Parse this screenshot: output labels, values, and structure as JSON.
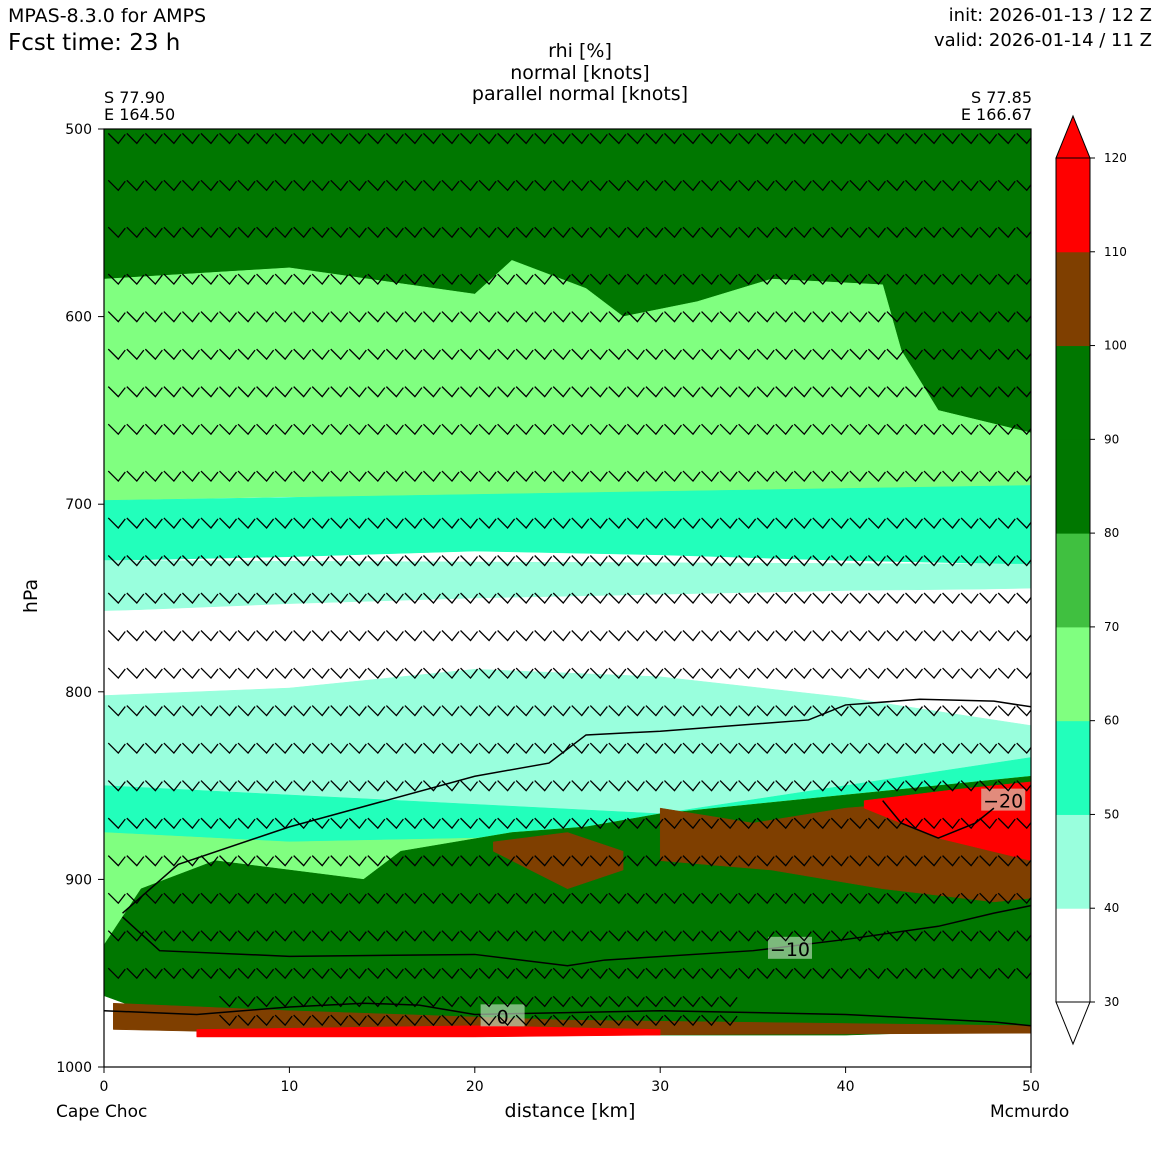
{
  "header": {
    "model": "MPAS-8.3.0 for AMPS",
    "fcst": "Fcst time:   23 h",
    "init": "init: 2026-01-13 / 12 Z",
    "valid": "valid: 2026-01-14 / 11 Z"
  },
  "chart_data": {
    "type": "heatmap",
    "title": [
      "rhi [%]",
      "normal [knots]",
      "parallel normal [knots]"
    ],
    "xlabel": "distance [km]",
    "ylabel": "hPa",
    "xlim": [
      0,
      50
    ],
    "ylim": [
      1000,
      500
    ],
    "x_ticks": [
      0,
      10,
      20,
      30,
      40,
      50
    ],
    "y_ticks": [
      500,
      600,
      700,
      800,
      900,
      1000
    ],
    "start_point": {
      "lat": "S 77.90",
      "lon": "E 164.50",
      "name": "Cape Choc"
    },
    "end_point": {
      "lat": "S 77.85",
      "lon": "E 166.67",
      "name": "Mcmurdo"
    },
    "colorbar": {
      "levels": [
        30,
        40,
        50,
        60,
        70,
        80,
        90,
        100,
        110,
        120
      ],
      "colors": [
        "#ffffff",
        "#99ffdd",
        "#22ffbb",
        "#80ff80",
        "#40c040",
        "#007700",
        "#007700",
        "#7f3f00",
        "#ff0000"
      ],
      "extend": "both"
    },
    "rhi_field": [
      {
        "rhi": 90,
        "color": "#007700",
        "top": [
          [
            0,
            500
          ],
          [
            50,
            500
          ]
        ],
        "bottom": [
          [
            0,
            580
          ],
          [
            10,
            574
          ],
          [
            20,
            588
          ],
          [
            22,
            570
          ],
          [
            26,
            585
          ],
          [
            28,
            600
          ],
          [
            32,
            592
          ],
          [
            36,
            580
          ],
          [
            42,
            583
          ],
          [
            43,
            618
          ],
          [
            45,
            650
          ],
          [
            50,
            662
          ]
        ]
      },
      {
        "rhi": 65,
        "color": "#80ff80",
        "top": [
          [
            0,
            580
          ],
          [
            10,
            574
          ],
          [
            20,
            588
          ],
          [
            22,
            570
          ],
          [
            26,
            585
          ],
          [
            28,
            600
          ],
          [
            32,
            592
          ],
          [
            36,
            580
          ],
          [
            42,
            583
          ],
          [
            43,
            618
          ],
          [
            45,
            650
          ],
          [
            50,
            662
          ]
        ],
        "bottom": [
          [
            0,
            698
          ],
          [
            10,
            696
          ],
          [
            20,
            697
          ],
          [
            30,
            694
          ],
          [
            40,
            692
          ],
          [
            50,
            690
          ]
        ]
      },
      {
        "rhi": 55,
        "color": "#22ffbb",
        "top": [
          [
            0,
            698
          ],
          [
            50,
            690
          ]
        ],
        "bottom": [
          [
            0,
            730
          ],
          [
            10,
            728
          ],
          [
            20,
            725
          ],
          [
            30,
            727
          ],
          [
            40,
            730
          ],
          [
            50,
            732
          ]
        ]
      },
      {
        "rhi": 45,
        "color": "#99ffdd",
        "top": [
          [
            0,
            730
          ],
          [
            50,
            732
          ]
        ],
        "bottom": [
          [
            0,
            757
          ],
          [
            10,
            753
          ],
          [
            20,
            750
          ],
          [
            30,
            748
          ],
          [
            40,
            746
          ],
          [
            50,
            745
          ]
        ]
      },
      {
        "rhi": 35,
        "color": "#ffffff",
        "top": [
          [
            0,
            757
          ],
          [
            50,
            745
          ]
        ],
        "bottom": [
          [
            0,
            802
          ],
          [
            10,
            798
          ],
          [
            20,
            788
          ],
          [
            30,
            792
          ],
          [
            40,
            803
          ],
          [
            50,
            818
          ]
        ]
      },
      {
        "rhi": 45,
        "color": "#99ffdd",
        "top": [
          [
            0,
            802
          ],
          [
            10,
            798
          ],
          [
            20,
            788
          ],
          [
            30,
            792
          ],
          [
            40,
            803
          ],
          [
            50,
            818
          ]
        ],
        "bottom": [
          [
            0,
            850
          ],
          [
            10,
            855
          ],
          [
            20,
            860
          ],
          [
            30,
            865
          ],
          [
            40,
            850
          ],
          [
            50,
            835
          ]
        ]
      },
      {
        "rhi": 55,
        "color": "#22ffbb",
        "top": [
          [
            0,
            850
          ],
          [
            10,
            855
          ],
          [
            20,
            860
          ],
          [
            30,
            865
          ],
          [
            40,
            850
          ],
          [
            50,
            835
          ]
        ],
        "bottom": [
          [
            0,
            875
          ],
          [
            10,
            880
          ],
          [
            20,
            878
          ],
          [
            26,
            875
          ],
          [
            30,
            865
          ],
          [
            40,
            855
          ],
          [
            50,
            845
          ]
        ]
      },
      {
        "rhi": 65,
        "color": "#80ff80",
        "top": [
          [
            0,
            875
          ],
          [
            10,
            880
          ],
          [
            20,
            878
          ],
          [
            26,
            875
          ],
          [
            30,
            865
          ],
          [
            40,
            855
          ],
          [
            50,
            845
          ]
        ],
        "bottom": [
          [
            0,
            935
          ],
          [
            2,
            905
          ],
          [
            6,
            890
          ],
          [
            14,
            900
          ],
          [
            16,
            885
          ],
          [
            22,
            875
          ],
          [
            26,
            872
          ],
          [
            30,
            865
          ],
          [
            40,
            855
          ],
          [
            50,
            845
          ]
        ]
      },
      {
        "rhi": 90,
        "color": "#007700",
        "top": [
          [
            0,
            935
          ],
          [
            2,
            905
          ],
          [
            6,
            890
          ],
          [
            14,
            900
          ],
          [
            16,
            885
          ],
          [
            22,
            875
          ],
          [
            26,
            872
          ],
          [
            30,
            865
          ],
          [
            40,
            855
          ],
          [
            50,
            845
          ]
        ],
        "bottom": [
          [
            0,
            962
          ],
          [
            5,
            980
          ],
          [
            20,
            983
          ],
          [
            40,
            983
          ],
          [
            50,
            980
          ]
        ]
      },
      {
        "rhi": 105,
        "color": "#7f3f00",
        "top": [
          [
            30,
            862
          ],
          [
            35,
            870
          ],
          [
            40,
            862
          ],
          [
            45,
            858
          ],
          [
            50,
            855
          ]
        ],
        "bottom": [
          [
            30,
            890
          ],
          [
            36,
            895
          ],
          [
            42,
            905
          ],
          [
            48,
            912
          ],
          [
            50,
            910
          ]
        ]
      },
      {
        "rhi": 105,
        "color": "#7f3f00",
        "top": [
          [
            21,
            880
          ],
          [
            25,
            875
          ],
          [
            28,
            885
          ]
        ],
        "bottom": [
          [
            21,
            885
          ],
          [
            25,
            905
          ],
          [
            28,
            895
          ]
        ]
      },
      {
        "rhi": 115,
        "color": "#ff0000",
        "top": [
          [
            41,
            858
          ],
          [
            46,
            852
          ],
          [
            50,
            848
          ]
        ],
        "bottom": [
          [
            41,
            862
          ],
          [
            45,
            878
          ],
          [
            50,
            890
          ]
        ]
      },
      {
        "rhi": 105,
        "color": "#7f3f00",
        "top": [
          [
            0.5,
            966
          ],
          [
            10,
            970
          ],
          [
            25,
            975
          ],
          [
            50,
            978
          ]
        ],
        "bottom": [
          [
            0.5,
            980
          ],
          [
            10,
            982
          ],
          [
            25,
            983
          ],
          [
            50,
            982
          ]
        ]
      },
      {
        "rhi": 115,
        "color": "#ff0000",
        "top": [
          [
            5,
            980
          ],
          [
            20,
            978
          ],
          [
            30,
            980
          ]
        ],
        "bottom": [
          [
            5,
            984
          ],
          [
            20,
            984
          ],
          [
            30,
            983
          ]
        ]
      }
    ],
    "temperature_contours": [
      {
        "label": "0",
        "label_x": 21.5,
        "label_p": 973,
        "points": [
          [
            0,
            970
          ],
          [
            5,
            972
          ],
          [
            10,
            968
          ],
          [
            14,
            966
          ],
          [
            17,
            967
          ],
          [
            20,
            972
          ],
          [
            25,
            971
          ],
          [
            30,
            970
          ],
          [
            40,
            972
          ],
          [
            48,
            976
          ],
          [
            50,
            978
          ]
        ]
      },
      {
        "label": "−10",
        "label_x": 37,
        "label_p": 937,
        "points": [
          [
            1,
            920
          ],
          [
            3,
            938
          ],
          [
            10,
            941
          ],
          [
            20,
            940
          ],
          [
            25,
            946
          ],
          [
            27,
            943
          ],
          [
            35,
            938
          ],
          [
            40,
            932
          ],
          [
            45,
            925
          ],
          [
            48,
            918
          ],
          [
            50,
            914
          ]
        ]
      },
      {
        "label": "−20",
        "label_x": 48.5,
        "label_p": 858,
        "points": [
          [
            1,
            918
          ],
          [
            4,
            892
          ],
          [
            10,
            872
          ],
          [
            20,
            845
          ],
          [
            24,
            838
          ],
          [
            26,
            823
          ],
          [
            30,
            821
          ],
          [
            38,
            815
          ],
          [
            40,
            807
          ],
          [
            44,
            804
          ],
          [
            48,
            805
          ],
          [
            50,
            808
          ]
        ]
      },
      {
        "label": "",
        "label_x": 0,
        "label_p": 0,
        "points": [
          [
            42,
            858
          ],
          [
            43,
            870
          ],
          [
            45,
            878
          ],
          [
            47,
            870
          ],
          [
            48,
            862
          ]
        ]
      }
    ],
    "wind_barbs": {
      "x": [
        0.5,
        1.5,
        2.5,
        3.5,
        4.5,
        5.5,
        6.5,
        7.5,
        8.5,
        9.5,
        10.5,
        11.5,
        12.5,
        13.5,
        14.5,
        15.5,
        16.5,
        17.5,
        18.5,
        19.5,
        20.5,
        21.5,
        22.5,
        23.5,
        24.5,
        25.5,
        26.5,
        27.5,
        28.5,
        29.5,
        30.5,
        31.5,
        32.5,
        33.5,
        34.5,
        35.5,
        36.5,
        37.5,
        38.5,
        39.5,
        40.5,
        41.5,
        42.5,
        43.5,
        44.5,
        45.5,
        46.5,
        47.5,
        48.5,
        49.5
      ],
      "p": [
        505,
        530,
        555,
        580,
        600,
        620,
        640,
        660,
        685,
        710,
        730,
        750,
        770,
        790,
        810,
        830,
        850,
        870,
        890,
        910,
        930,
        950,
        965,
        975
      ]
    }
  }
}
